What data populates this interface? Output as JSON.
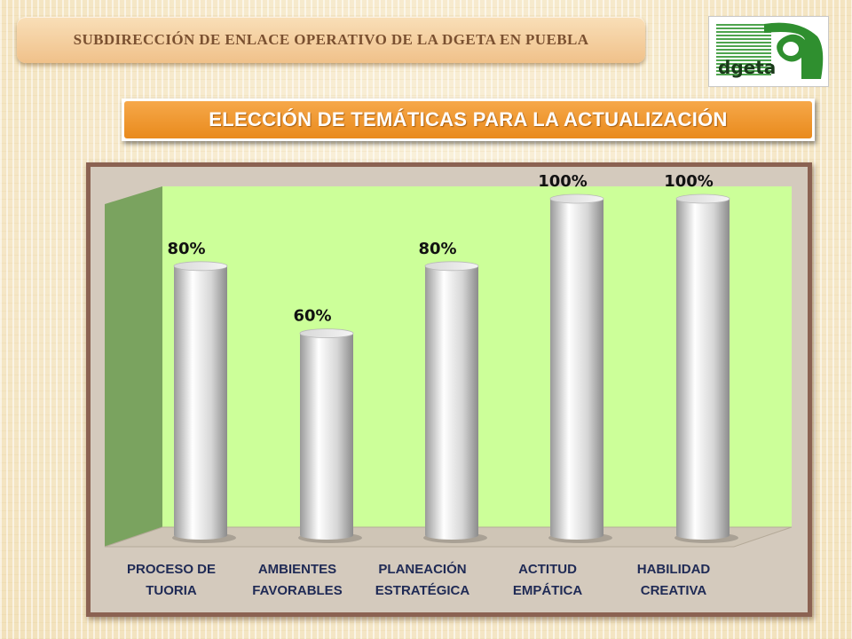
{
  "header": {
    "banner_text": "SUBDIRECCIÓN DE ENLACE OPERATIVO DE LA DGETA EN PUEBLA",
    "logo_text": "dgeta",
    "title": "ELECCIÓN DE TEMÁTICAS PARA LA ACTUALIZACIÓN"
  },
  "colors": {
    "banner": "#f0c18a",
    "title_bar": "#e98a1c",
    "plot_back": "#ccff99",
    "plot_side": "#7aa35f",
    "frame": "#8b6252",
    "logo_green": "#3a9a3a"
  },
  "chart_data": {
    "type": "bar",
    "style": "3d-cylinder",
    "categories": [
      [
        "PROCESO DE",
        "TUORIA"
      ],
      [
        "AMBIENTES",
        "FAVORABLES"
      ],
      [
        "PLANEACIÓN",
        "ESTRATÉGICA"
      ],
      [
        "ACTITUD",
        "EMPÁTICA"
      ],
      [
        "HABILIDAD",
        "CREATIVA"
      ]
    ],
    "values": [
      80,
      60,
      80,
      100,
      100
    ],
    "data_labels": [
      "80%",
      "60%",
      "80%",
      "100%",
      "100%"
    ],
    "ylim": [
      0,
      100
    ],
    "grid": false,
    "legend": "none"
  }
}
